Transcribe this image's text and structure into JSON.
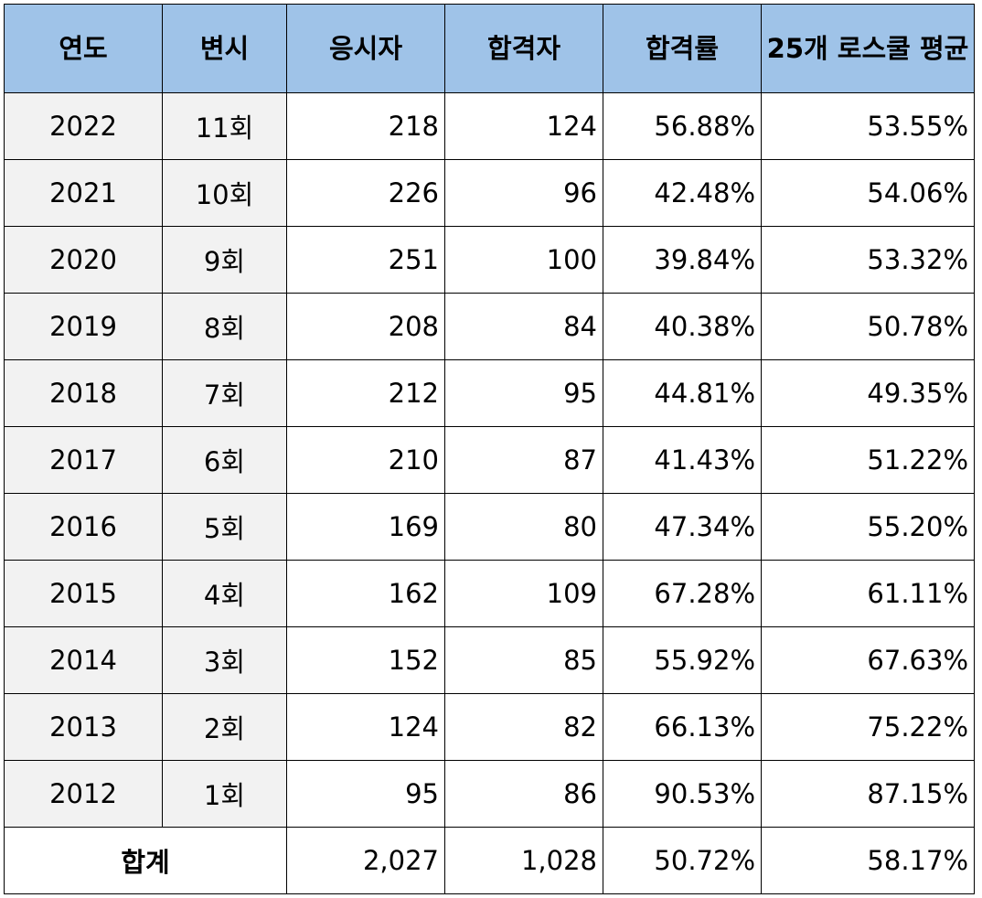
{
  "headers": [
    "연도",
    "변시",
    "응시자",
    "합격자",
    "합격률",
    "25개 로스쿨 평균"
  ],
  "rows": [
    [
      "2022",
      "11회",
      "218",
      "124",
      "56.88%",
      "53.55%"
    ],
    [
      "2021",
      "10회",
      "226",
      "96",
      "42.48%",
      "54.06%"
    ],
    [
      "2020",
      "9회",
      "251",
      "100",
      "39.84%",
      "53.32%"
    ],
    [
      "2019",
      "8회",
      "208",
      "84",
      "40.38%",
      "50.78%"
    ],
    [
      "2018",
      "7회",
      "212",
      "95",
      "44.81%",
      "49.35%"
    ],
    [
      "2017",
      "6회",
      "210",
      "87",
      "41.43%",
      "51.22%"
    ],
    [
      "2016",
      "5회",
      "169",
      "80",
      "47.34%",
      "55.20%"
    ],
    [
      "2015",
      "4회",
      "162",
      "109",
      "67.28%",
      "61.11%"
    ],
    [
      "2014",
      "3회",
      "152",
      "85",
      "55.92%",
      "67.63%"
    ],
    [
      "2013",
      "2회",
      "124",
      "82",
      "66.13%",
      "75.22%"
    ],
    [
      "2012",
      "1회",
      "95",
      "86",
      "90.53%",
      "87.15%"
    ]
  ],
  "total": {
    "label": "합계",
    "applicants": "2,027",
    "passed": "1,028",
    "pass_rate": "50.72%",
    "avg_25": "58.17%"
  },
  "colors": {
    "header_bg": "#9fc3e8",
    "label_bg": "#f2f2f2",
    "border": "#000000"
  }
}
